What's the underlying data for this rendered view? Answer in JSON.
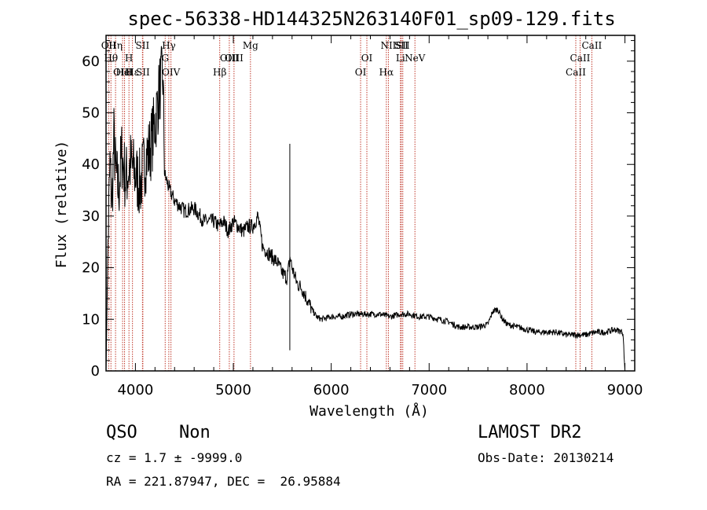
{
  "chart_data": {
    "type": "line",
    "title": "spec-56338-HD144325N263140F01_sp09-129.fits",
    "xlabel": "Wavelength (Å)",
    "ylabel": "Flux (relative)",
    "xlim": [
      3700,
      9100
    ],
    "ylim": [
      0,
      65
    ],
    "xticks": [
      4000,
      5000,
      6000,
      7000,
      8000,
      9000
    ],
    "yticks": [
      0,
      10,
      20,
      30,
      40,
      50,
      60
    ],
    "grid": false,
    "series": [
      {
        "x": [
          3700,
          3720,
          3740,
          3760,
          3780,
          3800,
          3830,
          3860,
          3900,
          3950,
          4000,
          4050,
          4100,
          4150,
          4200,
          4250,
          4280,
          4300,
          4350,
          4400,
          4500,
          4600,
          4700,
          4800,
          4850,
          4900,
          4950,
          5000,
          5050,
          5100,
          5150,
          5200,
          5250,
          5300,
          5350,
          5400,
          5450,
          5500,
          5550,
          5580,
          5600,
          5650,
          5700,
          5750,
          5800,
          5850,
          5900,
          6000,
          6100,
          6200,
          6300,
          6400,
          6500,
          6600,
          6700,
          6800,
          6900,
          7000,
          7100,
          7200,
          7300,
          7400,
          7500,
          7600,
          7650,
          7700,
          7750,
          7800,
          7900,
          8000,
          8100,
          8200,
          8300,
          8400,
          8500,
          8600,
          8700,
          8800,
          8900,
          8980,
          9000
        ],
        "y": [
          0,
          25,
          40,
          32,
          45,
          38,
          35,
          42,
          37,
          40,
          38,
          36,
          41,
          43,
          48,
          55,
          57,
          38,
          35,
          33,
          31,
          31.5,
          29,
          29,
          28,
          29,
          27,
          29,
          28,
          27,
          28,
          28,
          30,
          24,
          23,
          22,
          21,
          19,
          18,
          22,
          20,
          17,
          16,
          14,
          12,
          10.5,
          10,
          10.5,
          10.5,
          11,
          11,
          11,
          11,
          10.5,
          11,
          11,
          10.5,
          10.5,
          10,
          9.5,
          8.5,
          8.5,
          8.5,
          9,
          11.5,
          12,
          10,
          9,
          8.5,
          8,
          7.5,
          7.5,
          7.5,
          7,
          7,
          7,
          7.5,
          7.5,
          8,
          7.5,
          0
        ]
      }
    ],
    "spikes": [
      {
        "x": 5577,
        "y_low": 4,
        "y_high": 44
      }
    ],
    "lines": [
      {
        "label": "OII",
        "x": 3727,
        "row": 0
      },
      {
        "label": "Hθ",
        "x": 3750,
        "row": 1
      },
      {
        "label": "Hη",
        "x": 3797,
        "row": 0
      },
      {
        "label": "OIII",
        "x": 3869,
        "row": 2
      },
      {
        "label": "HeI",
        "x": 3889,
        "row": 2
      },
      {
        "label": "H",
        "x": 3934,
        "row": 1
      },
      {
        "label": "SII",
        "x": 4072,
        "row": 0
      },
      {
        "label": "SII",
        "x": 4076,
        "row": 2
      },
      {
        "label": "Hε",
        "x": 3970,
        "row": 2
      },
      {
        "label": "Hγ",
        "x": 4341,
        "row": 0
      },
      {
        "label": "G",
        "x": 4304,
        "row": 1
      },
      {
        "label": "OIV",
        "x": 4363,
        "row": 2
      },
      {
        "label": "Hβ",
        "x": 4861,
        "row": 2
      },
      {
        "label": "OIII",
        "x": 4959,
        "row": 1
      },
      {
        "label": "OIII",
        "x": 5007,
        "row": 1
      },
      {
        "label": "Mg",
        "x": 5175,
        "row": 0
      },
      {
        "label": "OI",
        "x": 6300,
        "row": 2
      },
      {
        "label": "OI",
        "x": 6364,
        "row": 1
      },
      {
        "label": "Hα",
        "x": 6563,
        "row": 2
      },
      {
        "label": "NII",
        "x": 6584,
        "row": 0
      },
      {
        "label": "SII",
        "x": 6716,
        "row": 0
      },
      {
        "label": "SII",
        "x": 6731,
        "row": 0
      },
      {
        "label": "Li",
        "x": 6707,
        "row": 1
      },
      {
        "label": "NeV",
        "x": 6855,
        "row": 1
      },
      {
        "label": "CaII",
        "x": 8498,
        "row": 2
      },
      {
        "label": "CaII",
        "x": 8542,
        "row": 1
      },
      {
        "label": "CaII",
        "x": 8662,
        "row": 0
      }
    ]
  },
  "info": {
    "class": "QSO",
    "subclass": "Non",
    "survey": "LAMOST DR2",
    "cz": "cz = 1.7 ± -9999.0",
    "obs_date": "Obs-Date: 20130214",
    "radec": "RA = 221.87947, DEC =  26.95884"
  },
  "colors": {
    "axes": "#000000",
    "spectrum": "#000000",
    "line_marker": "#c0392b"
  }
}
